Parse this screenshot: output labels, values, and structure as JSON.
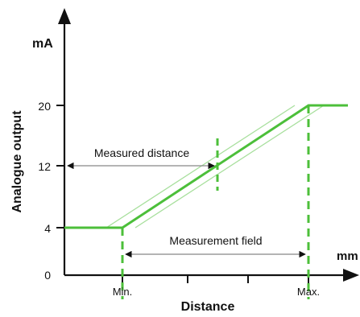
{
  "diagram": {
    "y_axis": {
      "label": "Analogue output",
      "unit": "mA",
      "ticks": [
        "20",
        "12",
        "4",
        "0"
      ]
    },
    "x_axis": {
      "label": "Distance",
      "unit": "mm",
      "ticks": [
        "Min.",
        "Max."
      ]
    },
    "annotations": {
      "measured_distance": "Measured distance",
      "measurement_field": "Measurement field"
    },
    "colors": {
      "signal": "#4cbf3a",
      "signal_light": "#a7df9c",
      "axis": "#111111",
      "guide": "#888888"
    }
  }
}
